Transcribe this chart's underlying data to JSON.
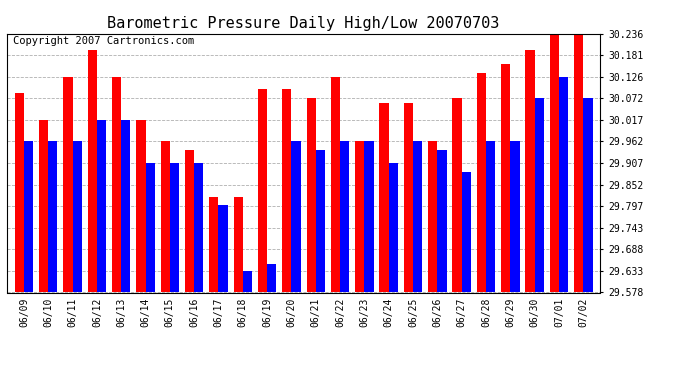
{
  "title": "Barometric Pressure Daily High/Low 20070703",
  "copyright": "Copyright 2007 Cartronics.com",
  "dates": [
    "06/09",
    "06/10",
    "06/11",
    "06/12",
    "06/13",
    "06/14",
    "06/15",
    "06/16",
    "06/17",
    "06/18",
    "06/19",
    "06/20",
    "06/21",
    "06/22",
    "06/23",
    "06/24",
    "06/25",
    "06/26",
    "06/27",
    "06/28",
    "06/29",
    "06/30",
    "07/01",
    "07/02"
  ],
  "highs": [
    30.085,
    30.017,
    30.126,
    30.195,
    30.126,
    30.017,
    29.962,
    29.94,
    29.82,
    29.82,
    30.096,
    30.096,
    30.072,
    30.126,
    29.962,
    30.06,
    30.06,
    29.962,
    30.072,
    30.135,
    30.16,
    30.195,
    30.236,
    30.236
  ],
  "lows": [
    29.962,
    29.962,
    29.962,
    30.017,
    30.017,
    29.907,
    29.907,
    29.907,
    29.8,
    29.633,
    29.65,
    29.962,
    29.94,
    29.962,
    29.962,
    29.907,
    29.962,
    29.94,
    29.885,
    29.962,
    29.962,
    30.072,
    30.126,
    30.072
  ],
  "ymin": 29.578,
  "ymax": 30.236,
  "yticks": [
    29.578,
    29.633,
    29.688,
    29.743,
    29.797,
    29.852,
    29.907,
    29.962,
    30.017,
    30.072,
    30.126,
    30.181,
    30.236
  ],
  "high_color": "#ff0000",
  "low_color": "#0000ff",
  "bg_color": "#ffffff",
  "plot_bg_color": "#ffffff",
  "grid_color": "#b0b0b0",
  "title_fontsize": 11,
  "copyright_fontsize": 7.5
}
